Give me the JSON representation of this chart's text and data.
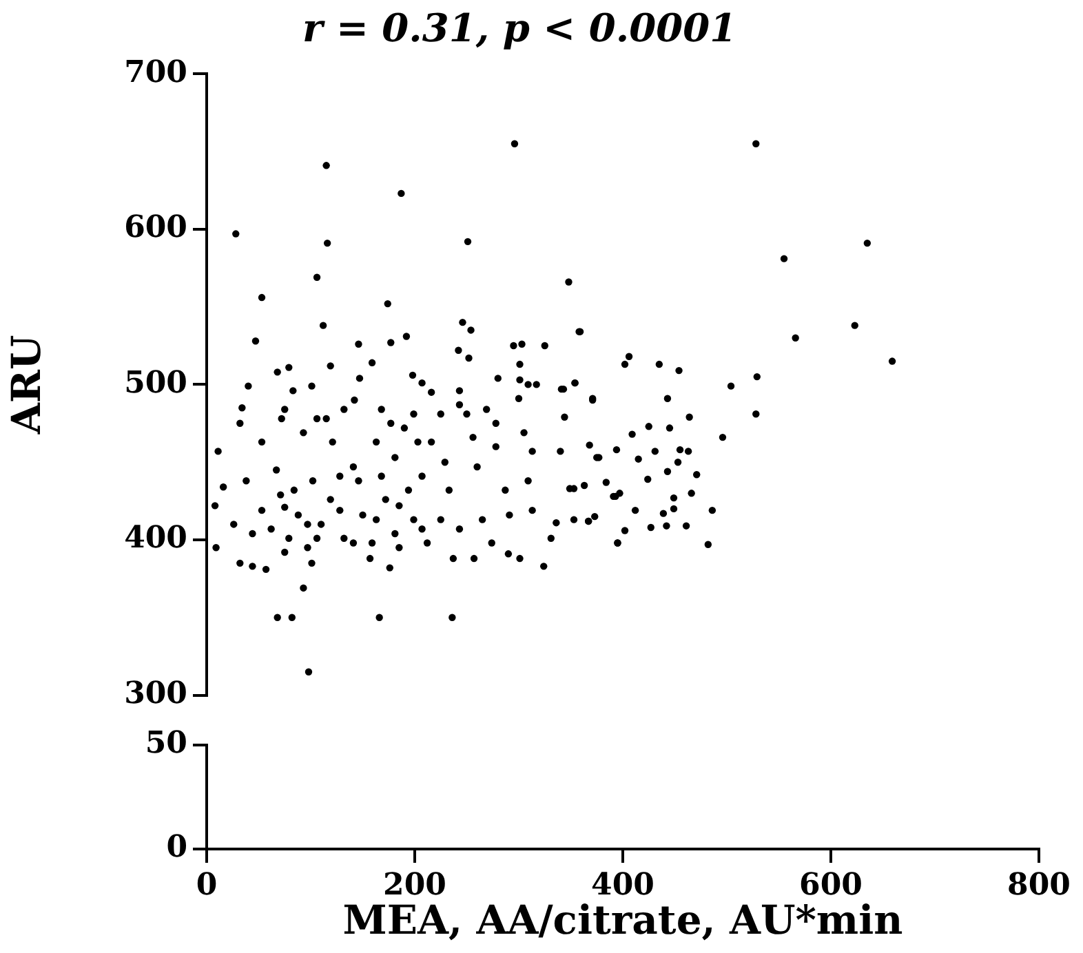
{
  "chart_data": [
    {
      "type": "scatter",
      "title": "r = 0.31, p < 0.0001",
      "ylabel": "ARU",
      "xlim": [
        0,
        800
      ],
      "xticks": [
        0,
        200,
        400,
        600,
        800
      ],
      "ylim": [
        300,
        700
      ],
      "yticks": [
        300,
        400,
        500,
        600,
        700
      ],
      "tick_labels": "y",
      "grid": false,
      "legend": false,
      "marker": "circle",
      "series": [
        {
          "color": "#000000",
          "x": [
            115,
            296,
            187,
            28,
            116,
            251,
            106,
            53,
            348,
            174,
            112,
            47,
            246,
            254,
            359,
            146,
            177,
            192,
            242,
            252,
            295,
            303,
            325,
            402,
            406,
            93,
            68,
            82,
            166,
            236,
            98,
            176,
            324,
            44,
            528,
            635,
            555,
            623,
            566,
            659,
            529,
            528,
            504,
            496,
            482,
            486,
            471,
            464,
            454,
            435,
            443,
            358,
            354,
            343,
            371,
            344,
            425,
            445,
            409,
            394,
            431,
            455,
            463,
            377,
            415,
            453,
            443,
            368,
            349,
            363,
            384,
            424,
            391,
            397,
            449,
            466,
            412,
            439,
            449,
            373,
            367,
            353,
            427,
            442,
            461,
            395,
            336,
            331,
            11,
            16,
            8,
            9,
            32,
            40,
            34,
            32,
            38,
            26,
            53,
            57,
            68,
            79,
            83,
            72,
            75,
            67,
            75,
            79,
            88,
            93,
            101,
            106,
            102,
            97,
            101,
            115,
            119,
            121,
            119,
            132,
            132,
            142,
            147,
            141,
            150,
            157,
            159,
            163,
            168,
            177,
            181,
            190,
            172,
            181,
            198,
            207,
            216,
            225,
            199,
            203,
            216,
            207,
            194,
            199,
            212,
            229,
            233,
            225,
            237,
            243,
            243,
            250,
            256,
            260,
            265,
            257,
            269,
            280,
            278,
            278,
            287,
            291,
            290,
            301,
            301,
            300,
            309,
            317,
            305,
            313,
            309,
            313,
            301,
            341,
            354,
            371,
            340,
            353,
            375,
            367,
            393,
            395,
            402,
            53,
            44,
            84,
            110,
            128,
            141,
            163,
            168,
            185,
            159,
            97,
            128,
            146,
            75,
            62,
            71,
            106,
            185,
            207,
            243,
            274
          ],
          "values": [
            641,
            655,
            623,
            597,
            591,
            592,
            569,
            556,
            566,
            552,
            538,
            528,
            540,
            535,
            534,
            526,
            527,
            531,
            522,
            517,
            525,
            526,
            525,
            513,
            518,
            369,
            350,
            350,
            350,
            350,
            315,
            382,
            383,
            383,
            655,
            591,
            581,
            538,
            530,
            515,
            505,
            481,
            499,
            466,
            397,
            419,
            442,
            479,
            509,
            513,
            491,
            534,
            501,
            497,
            490,
            479,
            473,
            472,
            468,
            458,
            457,
            458,
            457,
            453,
            452,
            450,
            444,
            461,
            433,
            435,
            437,
            439,
            428,
            430,
            427,
            430,
            419,
            417,
            420,
            415,
            412,
            413,
            408,
            409,
            409,
            398,
            411,
            401,
            457,
            434,
            422,
            395,
            385,
            499,
            485,
            475,
            438,
            410,
            463,
            381,
            508,
            511,
            496,
            478,
            484,
            445,
            421,
            401,
            416,
            469,
            499,
            478,
            438,
            410,
            385,
            478,
            512,
            463,
            426,
            401,
            484,
            490,
            504,
            447,
            416,
            388,
            514,
            463,
            484,
            475,
            453,
            472,
            426,
            404,
            506,
            501,
            495,
            481,
            481,
            463,
            463,
            441,
            432,
            413,
            398,
            450,
            432,
            413,
            388,
            496,
            487,
            481,
            466,
            447,
            413,
            388,
            484,
            504,
            475,
            460,
            432,
            416,
            391,
            513,
            503,
            491,
            500,
            500,
            469,
            457,
            438,
            419,
            388,
            497,
            501,
            491,
            457,
            433,
            453,
            412,
            428,
            398,
            406,
            419,
            404,
            432,
            410,
            419,
            398,
            413,
            441,
            422,
            398,
            395,
            441,
            438,
            392,
            407,
            429,
            401,
            395,
            407,
            407,
            398
          ]
        }
      ]
    },
    {
      "type": "scatter",
      "xlabel": "MEA, AA/citrate, AU*min",
      "xlim": [
        0,
        800
      ],
      "xticks": [
        0,
        200,
        400,
        600,
        800
      ],
      "ylim": [
        0,
        50
      ],
      "yticks": [
        0,
        50
      ],
      "grid": false,
      "legend": false
    }
  ]
}
